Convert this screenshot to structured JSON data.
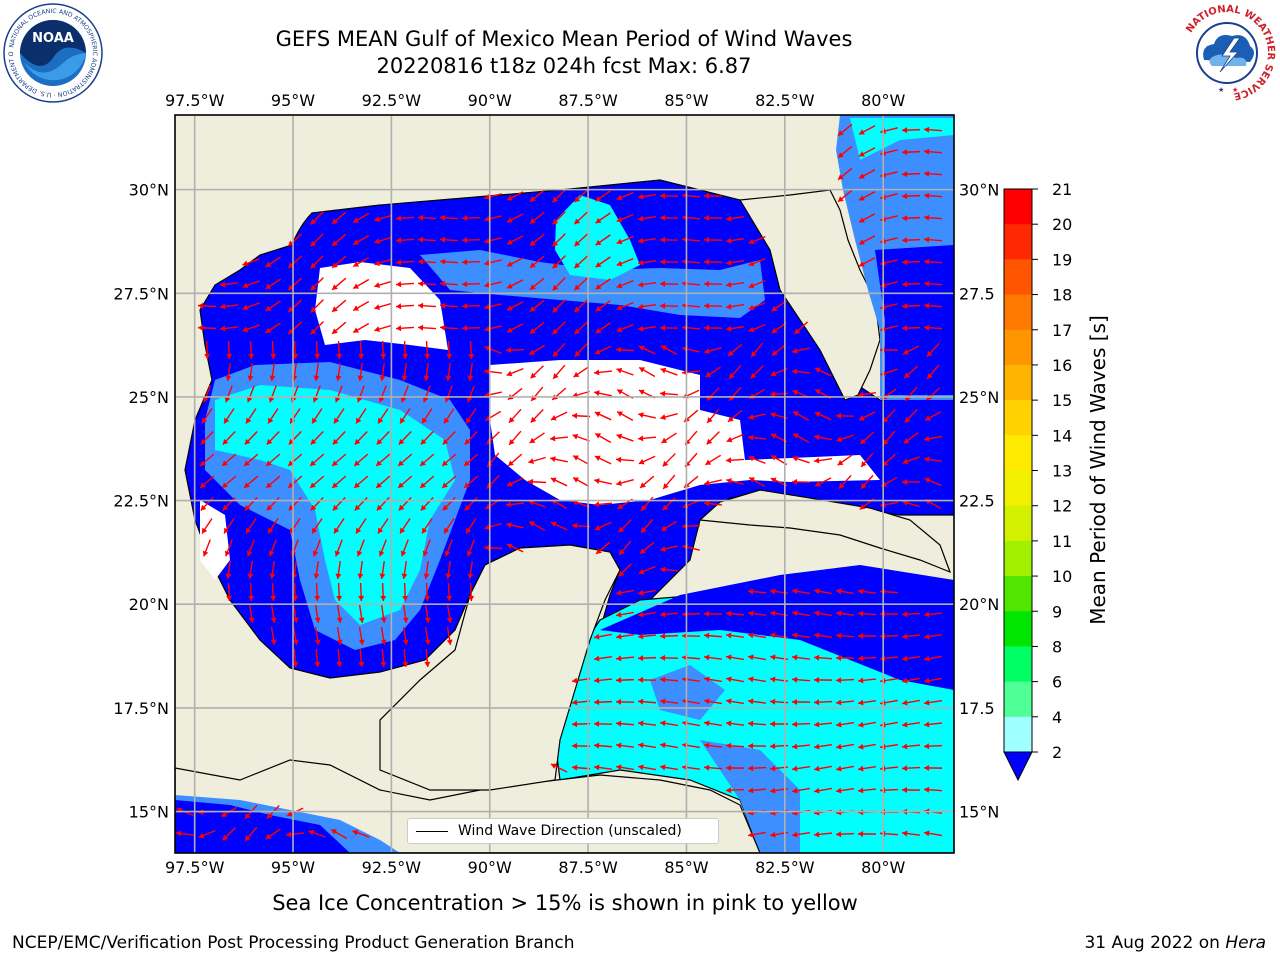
{
  "title": {
    "line1": "GEFS MEAN Gulf of Mexico Mean Period of Wind Waves",
    "line2": "20220816 t18z 024h fcst   Max: 6.87"
  },
  "logos": {
    "left": {
      "name": "noaa-logo",
      "text": "NOAA",
      "ring_text": "NATIONAL OCEANIC AND ATMOSPHERIC ADMINISTRATION · U.S. DEPARTMENT OF COMMERCE"
    },
    "right": {
      "name": "nws-logo",
      "ring_text": "NATIONAL WEATHER SERVICE"
    }
  },
  "map": {
    "lon_ticks": [
      "97.5°W",
      "95°W",
      "92.5°W",
      "90°W",
      "87.5°W",
      "85°W",
      "82.5°W",
      "80°W"
    ],
    "lon_values": [
      -97.5,
      -95,
      -92.5,
      -90,
      -87.5,
      -85,
      -82.5,
      -80
    ],
    "lat_ticks_left": [
      "30°N",
      "27.5°N",
      "25°N",
      "22.5°N",
      "20°N",
      "17.5°N",
      "15°N"
    ],
    "lat_ticks_right": [
      "30°N",
      "27.5",
      "25°N",
      "22.5",
      "20°N",
      "17.5",
      "15°N"
    ],
    "lat_values": [
      30,
      27.5,
      25,
      22.5,
      20,
      17.5,
      15
    ],
    "extent": {
      "lon_min": -98,
      "lon_max": -78.2,
      "lat_min": 14,
      "lat_max": 31.8
    },
    "colors": {
      "land": "#efeddb",
      "sea_calm": "#ffffff",
      "band_2_4": "#0000ff",
      "band_4_6": "#3d8fff",
      "band_6_8": "#00ffff",
      "arrow": "#ff0000",
      "grid": "#b0b0b0"
    },
    "legend_label": "Wind Wave Direction (unscaled)"
  },
  "colorbar": {
    "label": "Mean Period of Wind Waves [s]",
    "ticks": [
      "21",
      "20",
      "19",
      "18",
      "17",
      "16",
      "15",
      "14",
      "13",
      "12",
      "11",
      "10",
      "9",
      "8",
      "6",
      "4",
      "2"
    ],
    "colors_top_to_bottom": [
      "#ff0000",
      "#ff2800",
      "#ff5500",
      "#ff7800",
      "#ff9600",
      "#ffb400",
      "#ffd200",
      "#ffeb00",
      "#f0f000",
      "#d2f000",
      "#a0f000",
      "#50e600",
      "#00e600",
      "#00ff64",
      "#50ff96",
      "#a0ffff",
      "#50ffff",
      "#00ffff",
      "#0080ff"
    ],
    "extend_color": "#0000ff"
  },
  "bottom_note": "Sea Ice Concentration > 15% is shown in pink to yellow",
  "footer": {
    "left": "NCEP/EMC/Verification Post Processing Product Generation Branch",
    "right_date": "31 Aug 2022 on ",
    "right_host": "Hera"
  }
}
